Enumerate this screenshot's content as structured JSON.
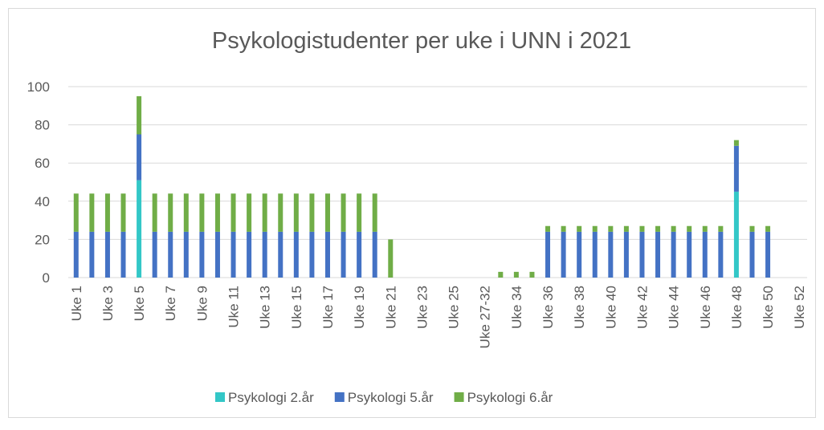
{
  "chart_data": {
    "type": "stacked_bar",
    "title": "Psykologistudenter per uke i UNN i 2021",
    "categories": [
      "Uke 1",
      null,
      "Uke 3",
      null,
      "Uke 5",
      null,
      "Uke 7",
      null,
      "Uke 9",
      null,
      "Uke 11",
      null,
      "Uke 13",
      null,
      "Uke 15",
      null,
      "Uke 17",
      null,
      "Uke 19",
      null,
      "Uke 21",
      null,
      "Uke 23",
      null,
      "Uke 25",
      null,
      "Uke 27-32",
      null,
      "Uke 34",
      null,
      "Uke 36",
      null,
      "Uke 38",
      null,
      "Uke 40",
      null,
      "Uke 42",
      null,
      "Uke 44",
      null,
      "Uke 46",
      null,
      "Uke 48",
      null,
      "Uke 50",
      null,
      "Uke 52"
    ],
    "series": [
      {
        "name": "Psykologi 2.år",
        "color": "#33c7c7",
        "values": [
          0,
          0,
          0,
          0,
          51,
          0,
          0,
          0,
          0,
          0,
          0,
          0,
          0,
          0,
          0,
          0,
          0,
          0,
          0,
          0,
          0,
          0,
          0,
          0,
          0,
          0,
          0,
          0,
          0,
          0,
          0,
          0,
          0,
          0,
          0,
          0,
          0,
          0,
          0,
          0,
          0,
          0,
          45,
          0,
          0,
          0,
          0
        ]
      },
      {
        "name": "Psykologi 5.år",
        "color": "#4472c4",
        "values": [
          24,
          24,
          24,
          24,
          24,
          24,
          24,
          24,
          24,
          24,
          24,
          24,
          24,
          24,
          24,
          24,
          24,
          24,
          24,
          24,
          0,
          0,
          0,
          0,
          0,
          0,
          0,
          0,
          0,
          0,
          24,
          24,
          24,
          24,
          24,
          24,
          24,
          24,
          24,
          24,
          24,
          24,
          24,
          24,
          24,
          0,
          0
        ]
      },
      {
        "name": "Psykologi 6.år",
        "color": "#70ad47",
        "values": [
          20,
          20,
          20,
          20,
          20,
          20,
          20,
          20,
          20,
          20,
          20,
          20,
          20,
          20,
          20,
          20,
          20,
          20,
          20,
          20,
          20,
          0,
          0,
          0,
          0,
          0,
          0,
          3,
          3,
          3,
          3,
          3,
          3,
          3,
          3,
          3,
          3,
          3,
          3,
          3,
          3,
          3,
          3,
          3,
          3,
          0,
          0
        ]
      }
    ],
    "ylim": [
      0,
      100
    ],
    "yticks": [
      0,
      20,
      40,
      60,
      80,
      100
    ],
    "grid": true,
    "legend": "bottom"
  }
}
